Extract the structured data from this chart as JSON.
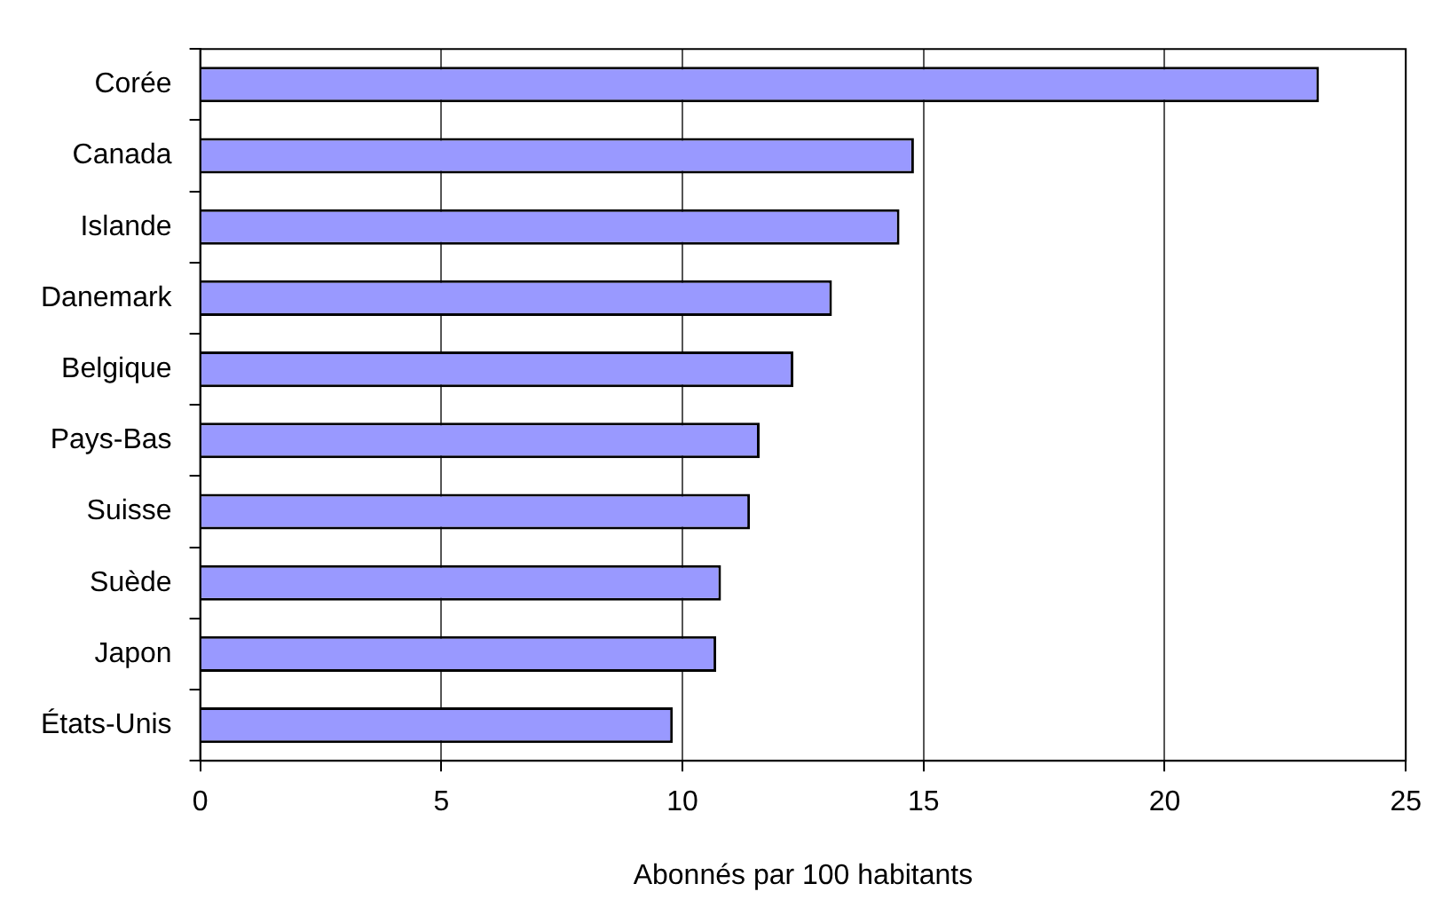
{
  "chart_data": {
    "type": "bar",
    "orientation": "horizontal",
    "xlabel": "Abonnés par 100 habitants",
    "categories": [
      "Corée",
      "Canada",
      "Islande",
      "Danemark",
      "Belgique",
      "Pays-Bas",
      "Suisse",
      "Suède",
      "Japon",
      "États-Unis"
    ],
    "values": [
      23.2,
      14.8,
      14.5,
      13.1,
      12.3,
      11.6,
      11.4,
      10.8,
      10.7,
      9.8
    ],
    "color": "#9999ff",
    "xlim": [
      0,
      25
    ],
    "xticks": [
      0,
      5,
      10,
      15,
      20,
      25
    ],
    "grid": "x",
    "legend": false
  }
}
